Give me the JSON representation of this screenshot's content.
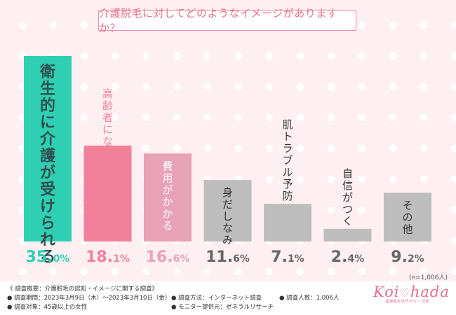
{
  "title": "介護脱毛に対してどのようなイメージがありますか？",
  "sample_note": "(n=1,006人)",
  "chart_data": {
    "type": "bar",
    "title": "介護脱毛に対してどのようなイメージがありますか？",
    "unit": "%",
    "categories": [
      "衛生的に介護が受けられる",
      "高齢者になってから行う",
      "費用がかかる",
      "身だしなみ",
      "肌トラブル予防",
      "自信がつく",
      "その他"
    ],
    "values": [
      35.0,
      18.1,
      16.6,
      11.6,
      7.1,
      2.4,
      9.2
    ],
    "value_labels": [
      [
        "35.",
        "0%"
      ],
      [
        "18.",
        "1%"
      ],
      [
        "16.",
        "6%"
      ],
      [
        "11.",
        "6%"
      ],
      [
        "7.",
        "1%"
      ],
      [
        "2.",
        "4%"
      ],
      [
        "9.",
        "2%"
      ]
    ],
    "label_position": [
      "inside",
      "above",
      "inside",
      "inside",
      "above",
      "above",
      "inside"
    ],
    "colors": [
      "#2ecfb3",
      "#f2809b",
      "#e8a2b8",
      "#bdbdbd",
      "#bdbdbd",
      "#bdbdbd",
      "#bdbdbd"
    ],
    "value_label_colors": [
      "#2ecfb3",
      "#f2809b",
      "#e8a2b8",
      "#666666",
      "#666666",
      "#666666",
      "#666666"
    ],
    "category_label_colors": [
      "#2f4f4f",
      "#f2809b",
      "#ffffff",
      "#333333",
      "#333333",
      "#333333",
      "#333333"
    ],
    "ylim": [
      0,
      35.0
    ],
    "grid": false,
    "legend": "none"
  },
  "footer": {
    "heading": "《 調査概要：介護脱毛の認知・イメージに関する調査》",
    "period": "● 調査期間：2023年3月9日（木）〜2023年3月10日（金）",
    "target": "● 調査対象：45歳以上の女性",
    "method": "● 調査方法：インターネット調査",
    "provider": "● モニター提供元：ゼネラルリサーチ",
    "count": "● 調査人数：1,006人"
  },
  "logo": {
    "left": "Koi",
    "right": "hada",
    "subtitle": "医療脱毛専門サロン 恋肌"
  }
}
